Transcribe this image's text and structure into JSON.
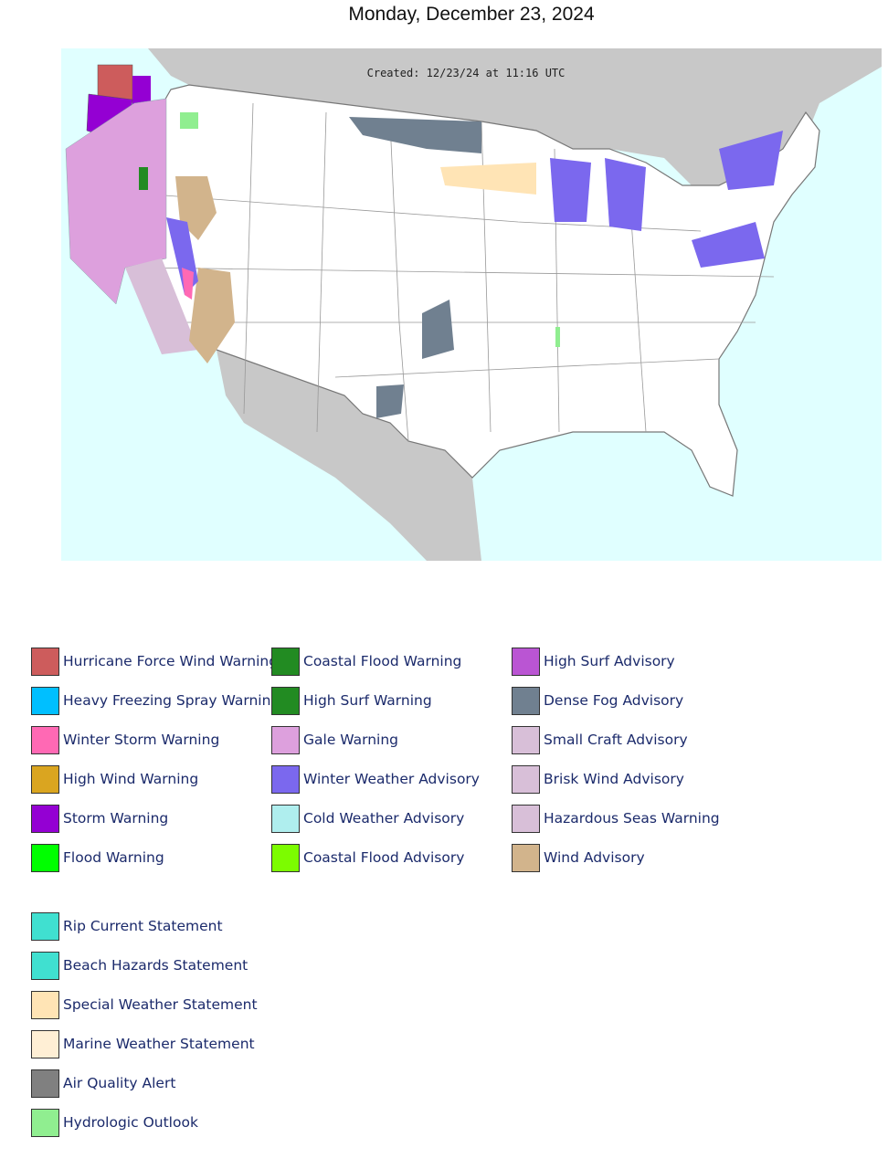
{
  "title": "Monday, December 23, 2024",
  "map": {
    "created": "Created: 12/23/24 at 11:16 UTC"
  },
  "legend": {
    "groups": [
      [
        {
          "name": "Hurricane Force Wind Warning",
          "color": "#cd5c5c"
        },
        {
          "name": "Heavy Freezing Spray Warning",
          "color": "#00bfff"
        },
        {
          "name": "Winter Storm Warning",
          "color": "#ff69b4"
        },
        {
          "name": "High Wind Warning",
          "color": "#daa520"
        },
        {
          "name": "Storm Warning",
          "color": "#9400d3"
        },
        {
          "name": "Flood Warning",
          "color": "#00ff00"
        },
        {
          "name": "Coastal Flood Warning",
          "color": "#228b22"
        },
        {
          "name": "High Surf Warning",
          "color": "#228b22"
        },
        {
          "name": "Gale Warning",
          "color": "#dda0dd"
        },
        {
          "name": "Winter Weather Advisory",
          "color": "#7b68ee"
        },
        {
          "name": "Cold Weather Advisory",
          "color": "#afeeee"
        },
        {
          "name": "Coastal Flood Advisory",
          "color": "#7cfc00"
        },
        {
          "name": "High Surf Advisory",
          "color": "#ba55d3"
        },
        {
          "name": "Dense Fog Advisory",
          "color": "#708090"
        },
        {
          "name": "Small Craft Advisory",
          "color": "#d8bfd8"
        },
        {
          "name": "Brisk Wind Advisory",
          "color": "#d8bfd8"
        },
        {
          "name": "Hazardous Seas Warning",
          "color": "#d8bfd8"
        },
        {
          "name": "Wind Advisory",
          "color": "#d2b48c"
        }
      ],
      [
        {
          "name": "Rip Current Statement",
          "color": "#40e0d0"
        },
        {
          "name": "Beach Hazards Statement",
          "color": "#40e0d0"
        },
        {
          "name": "Special Weather Statement",
          "color": "#ffe4b5"
        },
        {
          "name": "Marine Weather Statement",
          "color": "#ffefd5"
        },
        {
          "name": "Air Quality Alert",
          "color": "#808080"
        },
        {
          "name": "Hydrologic Outlook",
          "color": "#90ee90"
        }
      ]
    ]
  }
}
